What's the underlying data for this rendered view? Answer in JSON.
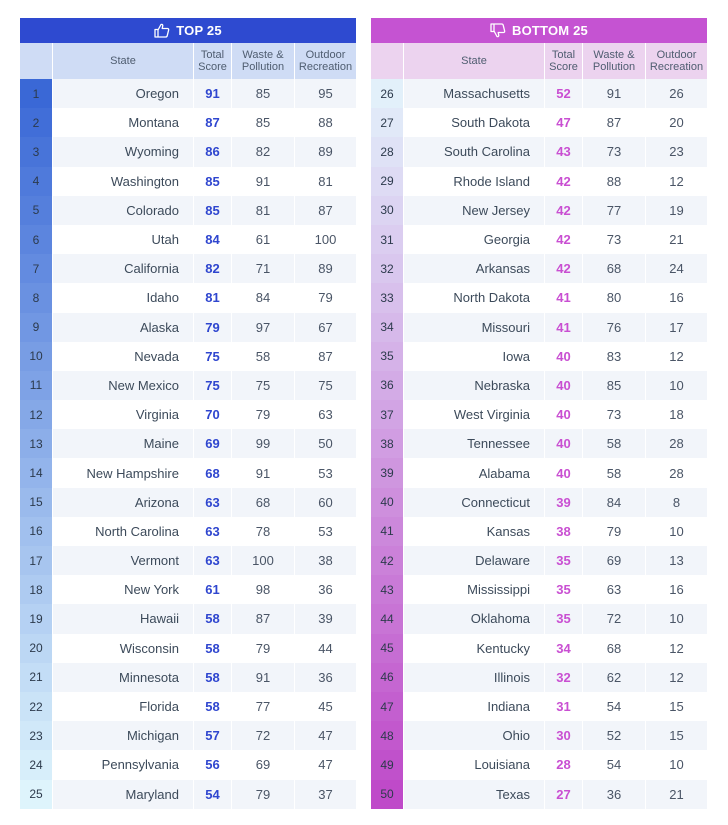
{
  "top": {
    "title": "TOP 25",
    "icon": "thumbs-up-icon",
    "accent": "#2e4ad0"
  },
  "bottom": {
    "title": "BOTTOM 25",
    "icon": "thumbs-down-icon",
    "accent": "#c553d2"
  },
  "headers": {
    "state": "State",
    "total_line1": "Total",
    "total_line2": "Score",
    "waste_line1": "Waste &",
    "waste_line2": "Pollution",
    "outdoor_line1": "Outdoor",
    "outdoor_line2": "Recreation"
  },
  "chart_data": {
    "type": "table",
    "columns": [
      "Rank",
      "State",
      "Total Score",
      "Waste & Pollution",
      "Outdoor Recreation"
    ],
    "top25": [
      [
        1,
        "Oregon",
        91,
        85,
        95
      ],
      [
        2,
        "Montana",
        87,
        85,
        88
      ],
      [
        3,
        "Wyoming",
        86,
        82,
        89
      ],
      [
        4,
        "Washington",
        85,
        91,
        81
      ],
      [
        5,
        "Colorado",
        85,
        81,
        87
      ],
      [
        6,
        "Utah",
        84,
        61,
        100
      ],
      [
        7,
        "California",
        82,
        71,
        89
      ],
      [
        8,
        "Idaho",
        81,
        84,
        79
      ],
      [
        9,
        "Alaska",
        79,
        97,
        67
      ],
      [
        10,
        "Nevada",
        75,
        58,
        87
      ],
      [
        11,
        "New Mexico",
        75,
        75,
        75
      ],
      [
        12,
        "Virginia",
        70,
        79,
        63
      ],
      [
        13,
        "Maine",
        69,
        99,
        50
      ],
      [
        14,
        "New Hampshire",
        68,
        91,
        53
      ],
      [
        15,
        "Arizona",
        63,
        68,
        60
      ],
      [
        16,
        "North Carolina",
        63,
        78,
        53
      ],
      [
        17,
        "Vermont",
        63,
        100,
        38
      ],
      [
        18,
        "New York",
        61,
        98,
        36
      ],
      [
        19,
        "Hawaii",
        58,
        87,
        39
      ],
      [
        20,
        "Wisconsin",
        58,
        79,
        44
      ],
      [
        21,
        "Minnesota",
        58,
        91,
        36
      ],
      [
        22,
        "Florida",
        58,
        77,
        45
      ],
      [
        23,
        "Michigan",
        57,
        72,
        47
      ],
      [
        24,
        "Pennsylvania",
        56,
        69,
        47
      ],
      [
        25,
        "Maryland",
        54,
        79,
        37
      ]
    ],
    "bottom25": [
      [
        26,
        "Massachusetts",
        52,
        91,
        26
      ],
      [
        27,
        "South Dakota",
        47,
        87,
        20
      ],
      [
        28,
        "South Carolina",
        43,
        73,
        23
      ],
      [
        29,
        "Rhode Island",
        42,
        88,
        12
      ],
      [
        30,
        "New Jersey",
        42,
        77,
        19
      ],
      [
        31,
        "Georgia",
        42,
        73,
        21
      ],
      [
        32,
        "Arkansas",
        42,
        68,
        24
      ],
      [
        33,
        "North Dakota",
        41,
        80,
        16
      ],
      [
        34,
        "Missouri",
        41,
        76,
        17
      ],
      [
        35,
        "Iowa",
        40,
        83,
        12
      ],
      [
        36,
        "Nebraska",
        40,
        85,
        10
      ],
      [
        37,
        "West Virginia",
        40,
        73,
        18
      ],
      [
        38,
        "Tennessee",
        40,
        58,
        28
      ],
      [
        39,
        "Alabama",
        40,
        58,
        28
      ],
      [
        40,
        "Connecticut",
        39,
        84,
        8
      ],
      [
        41,
        "Kansas",
        38,
        79,
        10
      ],
      [
        42,
        "Delaware",
        35,
        69,
        13
      ],
      [
        43,
        "Mississippi",
        35,
        63,
        16
      ],
      [
        44,
        "Oklahoma",
        35,
        72,
        10
      ],
      [
        45,
        "Kentucky",
        34,
        68,
        12
      ],
      [
        46,
        "Illinois",
        32,
        62,
        12
      ],
      [
        47,
        "Indiana",
        31,
        54,
        15
      ],
      [
        48,
        "Ohio",
        30,
        52,
        15
      ],
      [
        49,
        "Louisiana",
        28,
        54,
        10
      ],
      [
        50,
        "Texas",
        27,
        36,
        21
      ]
    ]
  }
}
